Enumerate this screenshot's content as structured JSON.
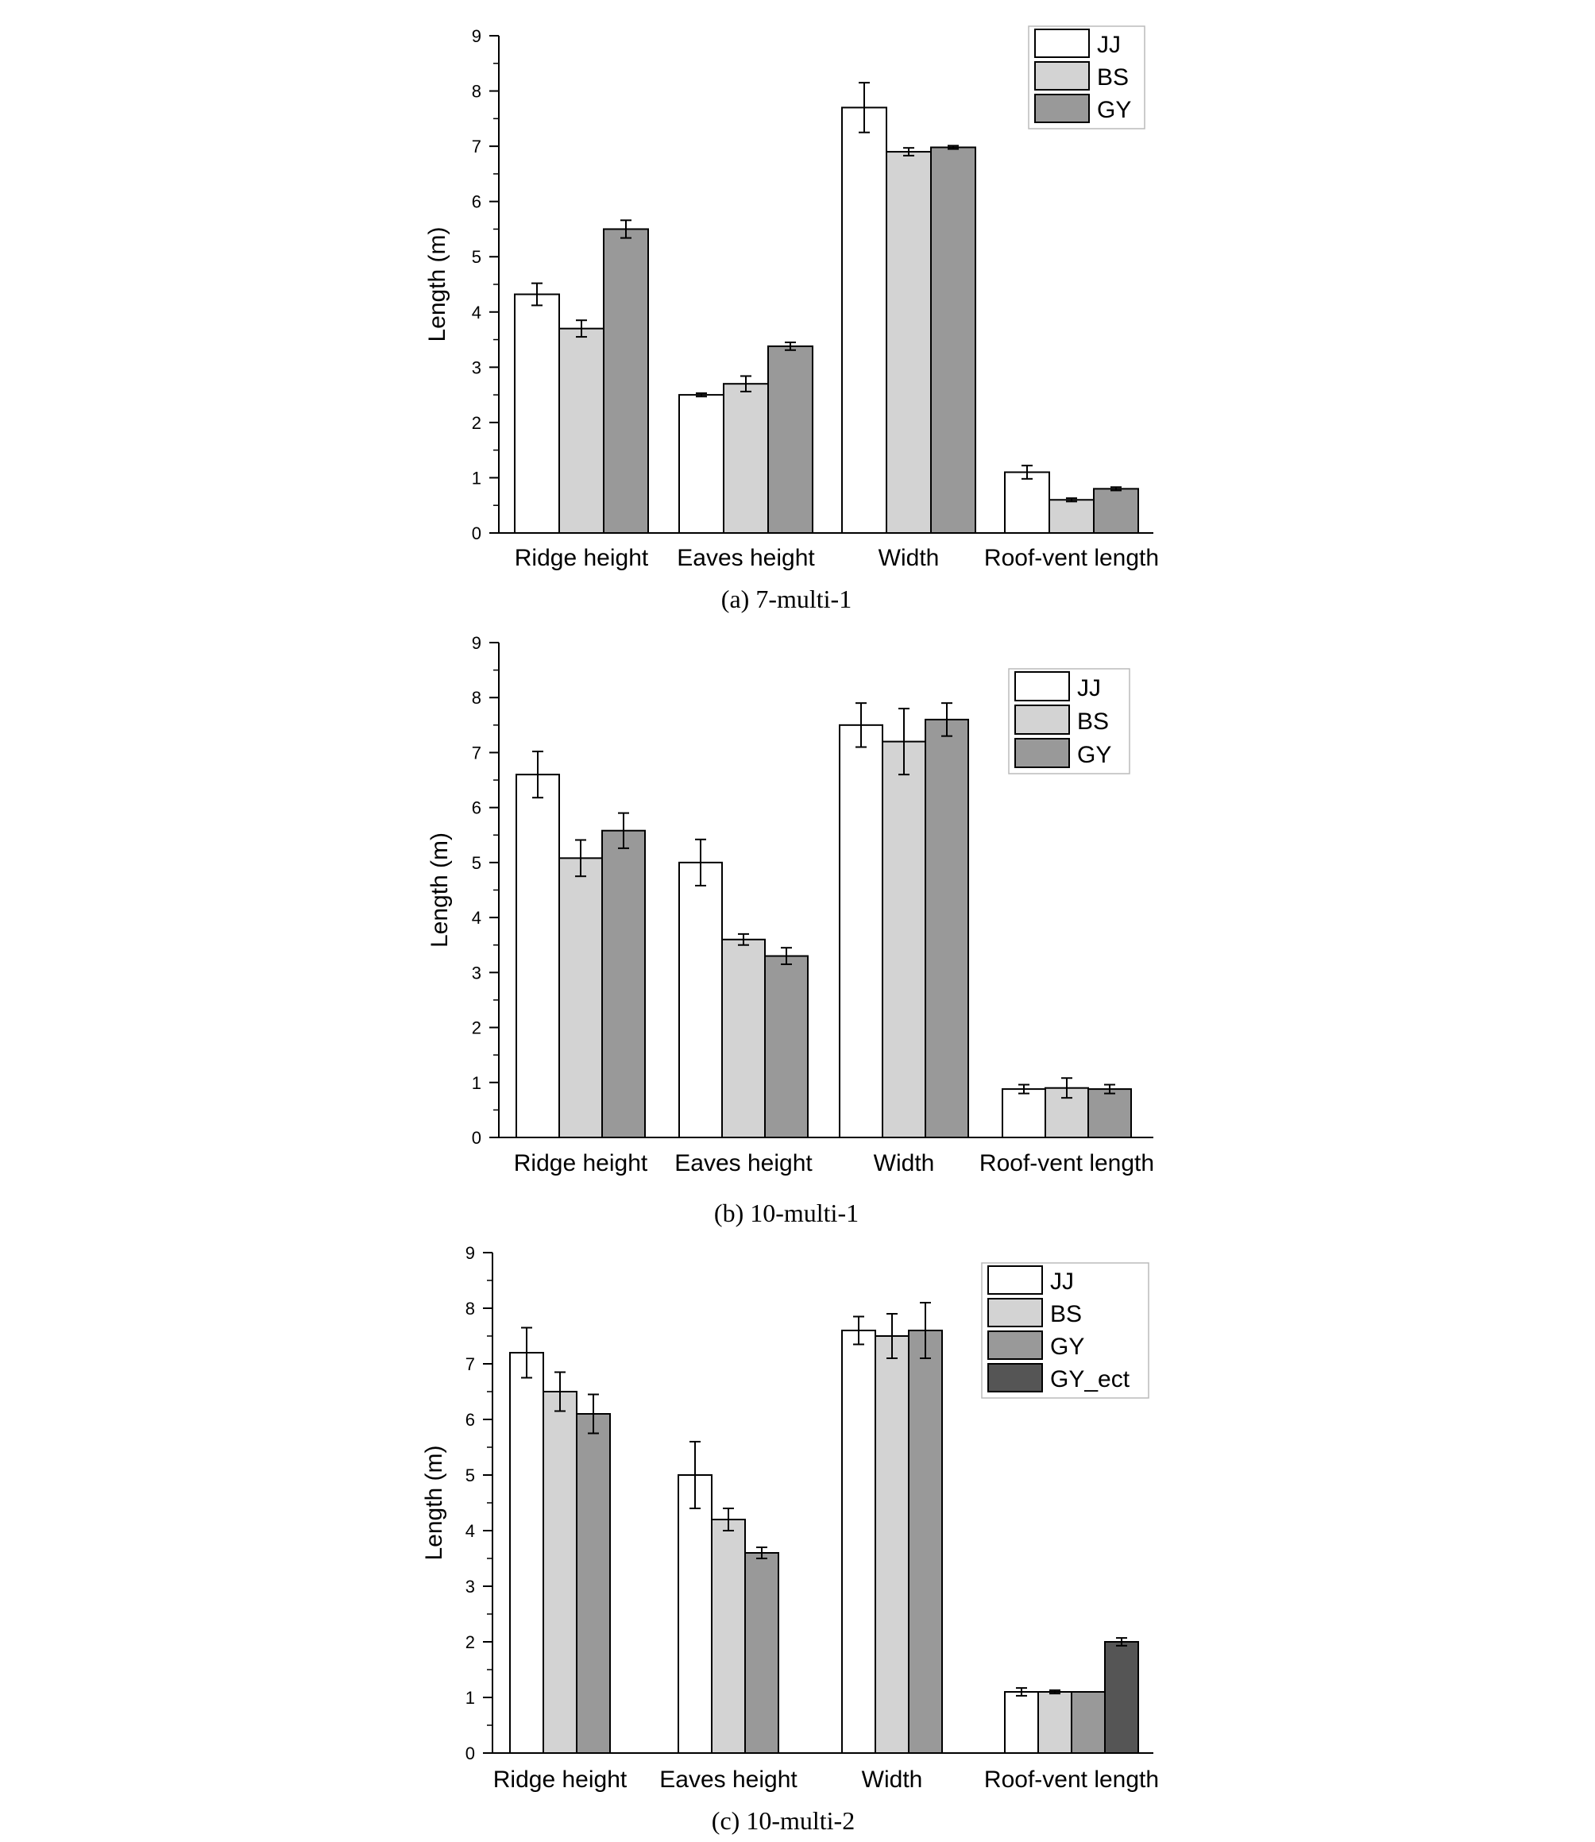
{
  "chart_data": [
    {
      "type": "bar",
      "caption": "(a)  7-multi-1",
      "ylabel": "Length (m)",
      "ylim": [
        0,
        9
      ],
      "yticks": [
        "0",
        "1",
        "2",
        "3",
        "4",
        "5",
        "6",
        "7",
        "8",
        "9"
      ],
      "categories": [
        "Ridge height",
        "Eaves height",
        "Width",
        "Roof-vent length"
      ],
      "series": [
        {
          "name": "JJ",
          "color": "#ffffff",
          "values": [
            4.32,
            2.5,
            7.7,
            1.1
          ],
          "errors": [
            0.2,
            0.03,
            0.45,
            0.12
          ]
        },
        {
          "name": "BS",
          "color": "#d3d3d3",
          "values": [
            3.7,
            2.7,
            6.9,
            0.6
          ],
          "errors": [
            0.15,
            0.14,
            0.07,
            0.03
          ]
        },
        {
          "name": "GY",
          "color": "#999999",
          "values": [
            5.5,
            3.38,
            6.98,
            0.8
          ],
          "errors": [
            0.16,
            0.07,
            0.03,
            0.03
          ]
        }
      ],
      "grid": false,
      "legend": "top-right"
    },
    {
      "type": "bar",
      "caption": "(b)  10-multi-1",
      "ylabel": "Length (m)",
      "ylim": [
        0,
        9
      ],
      "yticks": [
        "0",
        "1",
        "2",
        "3",
        "4",
        "5",
        "6",
        "7",
        "8",
        "9"
      ],
      "categories": [
        "Ridge height",
        "Eaves height",
        "Width",
        "Roof-vent length"
      ],
      "series": [
        {
          "name": "JJ",
          "color": "#ffffff",
          "values": [
            6.6,
            5.0,
            7.5,
            0.88
          ],
          "errors": [
            0.42,
            0.42,
            0.4,
            0.08
          ]
        },
        {
          "name": "BS",
          "color": "#d3d3d3",
          "values": [
            5.08,
            3.6,
            7.2,
            0.9
          ],
          "errors": [
            0.33,
            0.1,
            0.6,
            0.18
          ]
        },
        {
          "name": "GY",
          "color": "#999999",
          "values": [
            5.58,
            3.3,
            7.6,
            0.88
          ],
          "errors": [
            0.32,
            0.15,
            0.3,
            0.08
          ]
        }
      ],
      "grid": false,
      "legend": "top-right"
    },
    {
      "type": "bar",
      "caption": "(c)  10-multi-2",
      "ylabel": "Length (m)",
      "ylim": [
        0,
        9
      ],
      "yticks": [
        "0",
        "1",
        "2",
        "3",
        "4",
        "5",
        "6",
        "7",
        "8",
        "9"
      ],
      "categories": [
        "Ridge height",
        "Eaves height",
        "Width",
        "Roof-vent length"
      ],
      "series": [
        {
          "name": "JJ",
          "color": "#ffffff",
          "values": [
            7.2,
            5.0,
            7.6,
            1.1
          ],
          "errors": [
            0.45,
            0.6,
            0.25,
            0.07
          ]
        },
        {
          "name": "BS",
          "color": "#d3d3d3",
          "values": [
            6.5,
            4.2,
            7.5,
            1.1
          ],
          "errors": [
            0.35,
            0.2,
            0.4,
            0.03
          ]
        },
        {
          "name": "GY",
          "color": "#999999",
          "values": [
            6.1,
            3.6,
            7.6,
            1.1
          ],
          "errors": [
            0.35,
            0.1,
            0.5,
            0.0
          ]
        },
        {
          "name": "GY_ect",
          "color": "#555555",
          "values": [
            null,
            null,
            null,
            2.0
          ],
          "errors": [
            null,
            null,
            null,
            0.07
          ]
        }
      ],
      "grid": false,
      "legend": "top-right"
    }
  ]
}
